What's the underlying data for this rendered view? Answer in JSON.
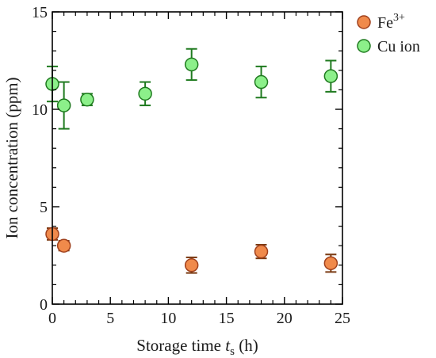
{
  "chart_data": {
    "type": "scatter",
    "xlabel": {
      "text": "Storage time ",
      "var": "t",
      "sub": "s",
      "unit": " (h)"
    },
    "ylabel": "Ion concentration (ppm)",
    "xlim": [
      0,
      25
    ],
    "ylim": [
      0,
      15
    ],
    "xticks": [
      0,
      5,
      10,
      15,
      20,
      25
    ],
    "yticks": [
      0,
      5,
      10,
      15
    ],
    "grid": false,
    "legend_position": "top-right, outside plot",
    "series": [
      {
        "name": "Fe",
        "name_sup": "3+",
        "fill": "#f08a4b",
        "stroke": "#a0401c",
        "errcolor": "#7a3a12",
        "points": [
          {
            "x": 0,
            "y": 3.6,
            "err": 0.3
          },
          {
            "x": 1,
            "y": 3.0,
            "err": 0.25
          },
          {
            "x": 12,
            "y": 2.0,
            "err": 0.4
          },
          {
            "x": 18,
            "y": 2.7,
            "err": 0.35
          },
          {
            "x": 24,
            "y": 2.1,
            "err": 0.45
          }
        ]
      },
      {
        "name": "Cu ion",
        "fill": "#8cf08a",
        "stroke": "#1f7a1f",
        "errcolor": "#1f7a1f",
        "points": [
          {
            "x": 0,
            "y": 11.3,
            "err": 0.9
          },
          {
            "x": 1,
            "y": 10.2,
            "err": 1.2
          },
          {
            "x": 3,
            "y": 10.5,
            "err": 0.3
          },
          {
            "x": 8,
            "y": 10.8,
            "err": 0.6
          },
          {
            "x": 12,
            "y": 12.3,
            "err": 0.8
          },
          {
            "x": 18,
            "y": 11.4,
            "err": 0.8
          },
          {
            "x": 24,
            "y": 11.7,
            "err": 0.8
          }
        ]
      }
    ]
  }
}
